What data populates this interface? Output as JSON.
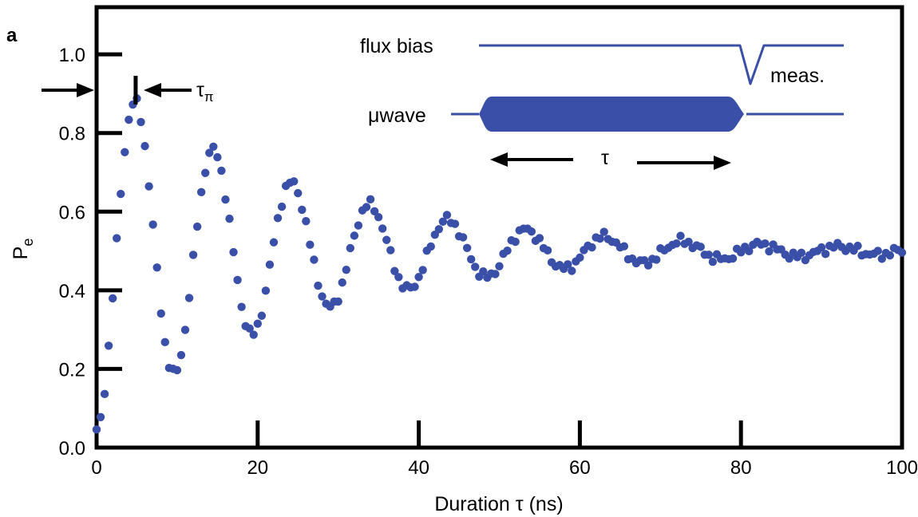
{
  "panel_label": "a",
  "chart_data": {
    "type": "scatter",
    "xlabel": "Duration τ (ns)",
    "ylabel_base": "P",
    "ylabel_sub": "e",
    "xlim": [
      0,
      100
    ],
    "ylim": [
      0,
      1.12
    ],
    "x_ticks": [
      0,
      20,
      40,
      60,
      80,
      100
    ],
    "x_tick_labels": [
      "0",
      "20",
      "40",
      "60",
      "80",
      "100"
    ],
    "y_ticks": [
      0.0,
      0.2,
      0.4,
      0.6,
      0.8,
      1.0
    ],
    "y_tick_labels": [
      "0.0",
      "0.2",
      "0.4",
      "0.6",
      "0.8",
      "1.0"
    ],
    "grid": false,
    "marker_color": "#3a4fa8",
    "series": [
      {
        "model": "damped_cosine",
        "x_start": 0.0,
        "x_end": 100.0,
        "x_step": 0.5,
        "offset": 0.5,
        "amplitude": 0.46,
        "period_ns": 9.7,
        "decay_ns": 25
      }
    ],
    "annotations": {
      "pi_pulse_label_base": "τ",
      "pi_pulse_label_sub": "π",
      "pi_pulse_x": 4.85,
      "pi_pulse_y": 0.935
    },
    "inset": {
      "flux_label": "flux bias",
      "meas_label": "meas.",
      "microwave_label": "μwave",
      "tau_label": "τ",
      "line_color": "#3a4fa8"
    }
  }
}
